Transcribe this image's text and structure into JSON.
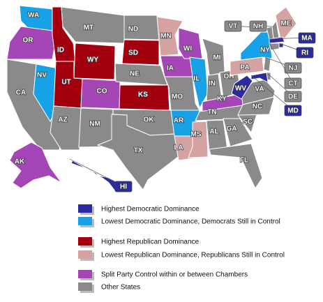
{
  "legend": [
    {
      "label": "Highest Democratic Dominance",
      "color": "#2b2aa0"
    },
    {
      "label": "Lowest Democratic Dominance, Democrats Still in Control",
      "color": "#17a2e8"
    },
    {
      "label": "Highest Republican Dominance",
      "color": "#a3000f"
    },
    {
      "label": "Lowest Republican Dominance, Republicans Still in Control",
      "color": "#d5a2a2"
    },
    {
      "label": "Split Party Control within or between Chambers",
      "color": "#a446b6"
    },
    {
      "label": "Other States",
      "color": "#8a8a8a"
    }
  ],
  "states": [
    {
      "label": "WA",
      "category": 1
    },
    {
      "label": "OR",
      "category": 4
    },
    {
      "label": "CA",
      "category": 5
    },
    {
      "label": "NV",
      "category": 1
    },
    {
      "label": "ID",
      "category": 2
    },
    {
      "label": "MT",
      "category": 5
    },
    {
      "label": "WY",
      "category": 2
    },
    {
      "label": "UT",
      "category": 2
    },
    {
      "label": "AZ",
      "category": 5
    },
    {
      "label": "CO",
      "category": 4
    },
    {
      "label": "NM",
      "category": 5
    },
    {
      "label": "ND",
      "category": 5
    },
    {
      "label": "SD",
      "category": 2
    },
    {
      "label": "NE",
      "category": 5
    },
    {
      "label": "KS",
      "category": 2
    },
    {
      "label": "OK",
      "category": 5
    },
    {
      "label": "TX",
      "category": 5
    },
    {
      "label": "MN",
      "category": 3
    },
    {
      "label": "IA",
      "category": 4
    },
    {
      "label": "MO",
      "category": 5
    },
    {
      "label": "AR",
      "category": 1
    },
    {
      "label": "LA",
      "category": 3
    },
    {
      "label": "WI",
      "category": 4
    },
    {
      "label": "IL",
      "category": 1
    },
    {
      "label": "MI",
      "category": 5
    },
    {
      "label": "IN",
      "category": 5
    },
    {
      "label": "OH",
      "category": 5
    },
    {
      "label": "KY",
      "category": 4
    },
    {
      "label": "TN",
      "category": 5
    },
    {
      "label": "MS",
      "category": 3
    },
    {
      "label": "AL",
      "category": 5
    },
    {
      "label": "GA",
      "category": 5
    },
    {
      "label": "FL",
      "category": 5
    },
    {
      "label": "SC",
      "category": 5
    },
    {
      "label": "NC",
      "category": 5
    },
    {
      "label": "VA",
      "category": 5
    },
    {
      "label": "WV",
      "category": 0
    },
    {
      "label": "PA",
      "category": 3
    },
    {
      "label": "NY",
      "category": 1
    },
    {
      "label": "ME",
      "category": 3
    },
    {
      "label": "VT",
      "category": 5
    },
    {
      "label": "NH",
      "category": 5
    },
    {
      "label": "MA",
      "category": 0
    },
    {
      "label": "RI",
      "category": 0
    },
    {
      "label": "NJ",
      "category": 5
    },
    {
      "label": "CT",
      "category": 5
    },
    {
      "label": "DE",
      "category": 5
    },
    {
      "label": "MD",
      "category": 0
    },
    {
      "label": "AK",
      "category": 4
    },
    {
      "label": "HI",
      "category": 0
    }
  ]
}
